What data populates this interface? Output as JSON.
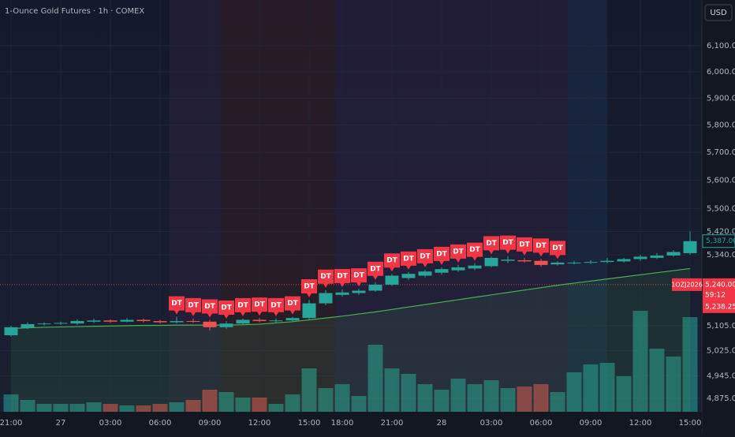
{
  "chart_data": {
    "type": "candlestick",
    "title": "1-Ounce Gold Futures · 1h · COMEX",
    "currency": "USD",
    "log": true,
    "grid": true,
    "up_color": "#26a69a",
    "down_color": "#ef5350",
    "ma_color": "#4caf50",
    "categories": [
      "21:00",
      null,
      null,
      "27",
      null,
      null,
      "03:00",
      null,
      null,
      "06:00",
      null,
      null,
      "09:00",
      null,
      null,
      "12:00",
      null,
      null,
      "15:00",
      null,
      "18:00",
      null,
      null,
      "21:00",
      null,
      null,
      "28",
      null,
      null,
      "03:00",
      null,
      null,
      "06:00",
      null,
      null,
      "09:00",
      null,
      null,
      "12:00",
      null,
      null,
      "15:00"
    ],
    "candles": [
      [
        5074,
        5104,
        5070,
        5100
      ],
      [
        5098,
        5116,
        5094,
        5110
      ],
      [
        5110,
        5116,
        5106,
        5112
      ],
      [
        5112,
        5118,
        5108,
        5114
      ],
      [
        5112,
        5126,
        5108,
        5120
      ],
      [
        5118,
        5128,
        5114,
        5122
      ],
      [
        5122,
        5126,
        5114,
        5118
      ],
      [
        5118,
        5130,
        5116,
        5124
      ],
      [
        5124,
        5128,
        5116,
        5120
      ],
      [
        5120,
        5124,
        5112,
        5116
      ],
      [
        5116,
        5134,
        5112,
        5120
      ],
      [
        5120,
        5128,
        5114,
        5118
      ],
      [
        5118,
        5124,
        5090,
        5100
      ],
      [
        5100,
        5120,
        5094,
        5112
      ],
      [
        5112,
        5128,
        5108,
        5124
      ],
      [
        5124,
        5130,
        5116,
        5120
      ],
      [
        5120,
        5128,
        5116,
        5122
      ],
      [
        5122,
        5134,
        5118,
        5130
      ],
      [
        5130,
        5190,
        5126,
        5178
      ],
      [
        5178,
        5222,
        5172,
        5212
      ],
      [
        5206,
        5224,
        5200,
        5214
      ],
      [
        5212,
        5226,
        5206,
        5220
      ],
      [
        5220,
        5248,
        5216,
        5240
      ],
      [
        5240,
        5276,
        5236,
        5270
      ],
      [
        5262,
        5282,
        5256,
        5276
      ],
      [
        5270,
        5290,
        5264,
        5284
      ],
      [
        5280,
        5298,
        5274,
        5292
      ],
      [
        5288,
        5306,
        5282,
        5298
      ],
      [
        5294,
        5312,
        5288,
        5304
      ],
      [
        5302,
        5334,
        5298,
        5330
      ],
      [
        5320,
        5336,
        5312,
        5324
      ],
      [
        5322,
        5330,
        5314,
        5318
      ],
      [
        5320,
        5326,
        5300,
        5306
      ],
      [
        5308,
        5318,
        5304,
        5314
      ],
      [
        5312,
        5320,
        5308,
        5314
      ],
      [
        5314,
        5322,
        5310,
        5316
      ],
      [
        5316,
        5330,
        5312,
        5320
      ],
      [
        5318,
        5330,
        5314,
        5326
      ],
      [
        5326,
        5340,
        5320,
        5334
      ],
      [
        5330,
        5346,
        5326,
        5338
      ],
      [
        5338,
        5356,
        5334,
        5350
      ],
      [
        5346,
        5420,
        5340,
        5387
      ]
    ],
    "ma": [
      5096,
      5098,
      5100,
      5101,
      5102,
      5103,
      5104,
      5105,
      5106,
      5106,
      5107,
      5107,
      5107,
      5107,
      5108,
      5110,
      5114,
      5118,
      5124,
      5130,
      5136,
      5143,
      5150,
      5158,
      5166,
      5174,
      5182,
      5190,
      5198,
      5206,
      5214,
      5222,
      5230,
      5238,
      5245,
      5252,
      5259,
      5266,
      5273,
      5280,
      5287,
      5294
    ],
    "volume": {
      "values": [
        22,
        15,
        10,
        10,
        10,
        12,
        10,
        8,
        8,
        10,
        12,
        15,
        28,
        25,
        18,
        18,
        10,
        22,
        55,
        30,
        35,
        20,
        85,
        55,
        48,
        35,
        28,
        42,
        35,
        40,
        30,
        32,
        35,
        25,
        50,
        60,
        62,
        45,
        128,
        80,
        70,
        120
      ],
      "ylim": [
        0,
        200
      ]
    },
    "signal": {
      "label": "DT",
      "candles": [
        10,
        11,
        12,
        13,
        14,
        15,
        16,
        17,
        18,
        19,
        20,
        21,
        22,
        23,
        24,
        25,
        26,
        27,
        28,
        29,
        30,
        31,
        32,
        33
      ]
    },
    "ylim": [
      4833,
      6280
    ],
    "yticks": [
      {
        "value": 6100,
        "label": "6,100.00"
      },
      {
        "value": 6000,
        "label": "6,000.00"
      },
      {
        "value": 5900,
        "label": "5,900.00"
      },
      {
        "value": 5800,
        "label": "5,800.00"
      },
      {
        "value": 5700,
        "label": "5,700.00"
      },
      {
        "value": 5600,
        "label": "5,600.00"
      },
      {
        "value": 5500,
        "label": "5,500.00"
      },
      {
        "value": 5420,
        "label": "5,420.00"
      },
      {
        "value": 5340,
        "label": "5,340.00"
      },
      {
        "value": 5105,
        "label": "5,105.00"
      },
      {
        "value": 5025,
        "label": "5,025.00"
      },
      {
        "value": 4945,
        "label": "4,945.00"
      },
      {
        "value": 4875,
        "label": "4,875.00"
      }
    ],
    "last_price": {
      "value": 5387,
      "label": "5,387.00"
    },
    "price_line": {
      "value": 5240,
      "label": "5,240.00",
      "symbol": "1OZJ2026",
      "countdown": "59:12",
      "settle": "5,238.25"
    }
  }
}
